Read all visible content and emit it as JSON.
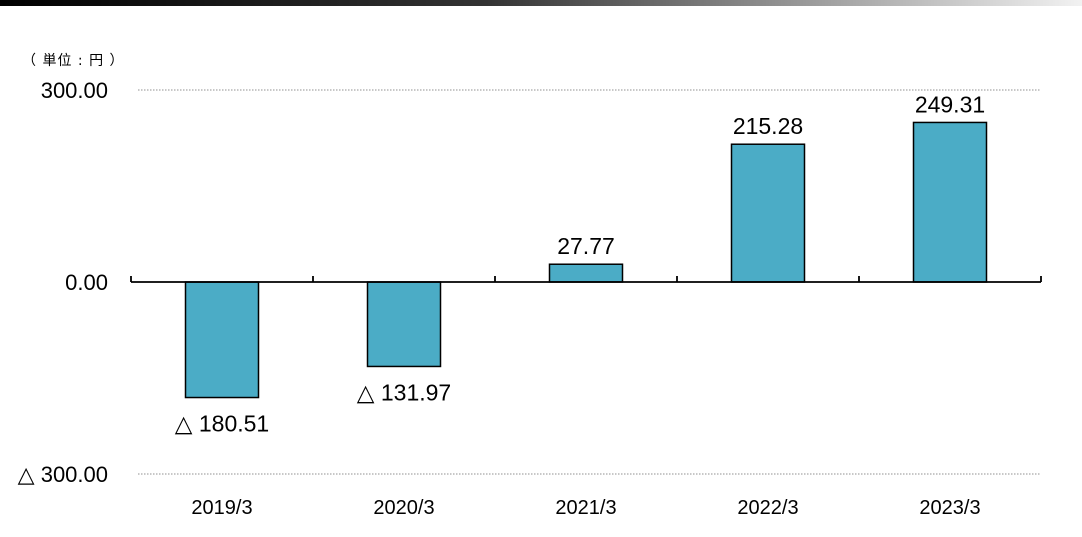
{
  "chart_data": {
    "type": "bar",
    "unit_label": "（ 単位 : 円 ）",
    "categories": [
      "2019/3",
      "2020/3",
      "2021/3",
      "2022/3",
      "2023/3"
    ],
    "values": [
      -180.51,
      -131.97,
      27.77,
      215.28,
      249.31
    ],
    "data_labels": [
      "△ 180.51",
      "△ 131.97",
      "27.77",
      "215.28",
      "249.31"
    ],
    "yticks": [
      300,
      0,
      -300
    ],
    "ytick_labels": [
      "300.00",
      "0.00",
      "△ 300.00"
    ],
    "ylim": [
      -300,
      300
    ],
    "bar_color": "#4bacc6",
    "bar_edge_color": "#000000",
    "grid": true,
    "legend": false
  }
}
